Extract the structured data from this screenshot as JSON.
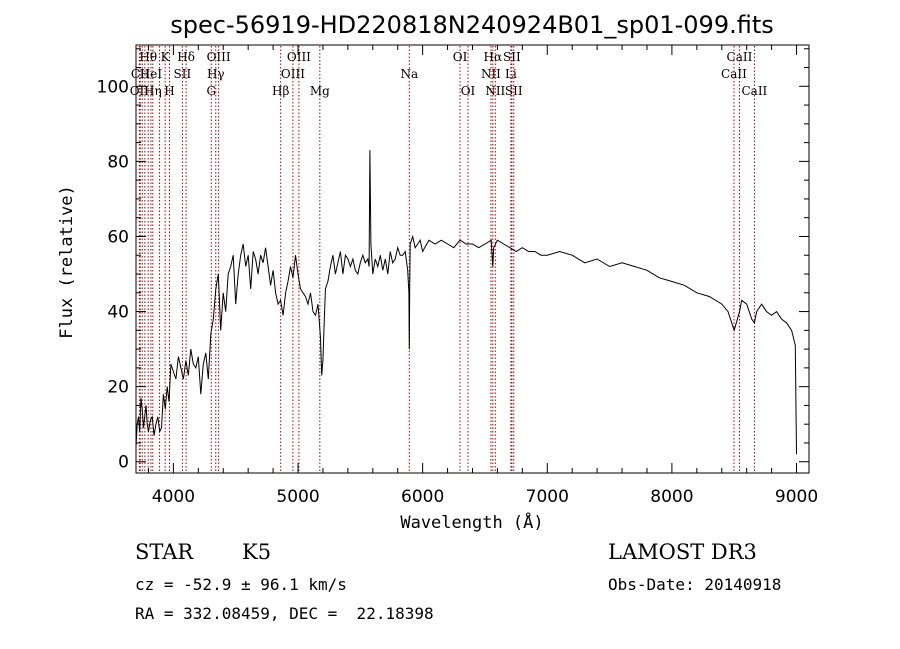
{
  "chart_data": {
    "type": "line",
    "title": "spec-56919-HD220818N240924B01_sp01-099.fits",
    "xlabel": "Wavelength (Å)",
    "ylabel": "Flux (relative)",
    "xlim": [
      3700,
      9100
    ],
    "ylim": [
      -3,
      111
    ],
    "xticks": [
      4000,
      5000,
      6000,
      7000,
      8000,
      9000
    ],
    "yticks": [
      0,
      20,
      40,
      60,
      80,
      100
    ],
    "grid": false,
    "line_color": "#000000",
    "marker_color": "#aa0000",
    "series": [
      {
        "x": [
          3700,
          3710,
          3720,
          3730,
          3740,
          3750,
          3760,
          3770,
          3780,
          3790,
          3800,
          3815,
          3830,
          3845,
          3860,
          3875,
          3890,
          3905,
          3920,
          3935,
          3950,
          3965,
          3980,
          4000,
          4020,
          4040,
          4060,
          4080,
          4100,
          4120,
          4140,
          4160,
          4180,
          4200,
          4220,
          4240,
          4260,
          4280,
          4300,
          4320,
          4340,
          4360,
          4380,
          4400,
          4420,
          4440,
          4460,
          4480,
          4500,
          4520,
          4540,
          4560,
          4580,
          4600,
          4620,
          4640,
          4660,
          4680,
          4700,
          4720,
          4740,
          4760,
          4780,
          4800,
          4820,
          4840,
          4860,
          4880,
          4900,
          4920,
          4940,
          4960,
          4980,
          5000,
          5020,
          5040,
          5060,
          5080,
          5100,
          5120,
          5140,
          5160,
          5180,
          5190,
          5200,
          5220,
          5240,
          5260,
          5280,
          5300,
          5320,
          5340,
          5360,
          5380,
          5400,
          5420,
          5440,
          5460,
          5480,
          5500,
          5520,
          5540,
          5560,
          5570,
          5577,
          5585,
          5600,
          5620,
          5640,
          5660,
          5680,
          5700,
          5720,
          5740,
          5760,
          5780,
          5800,
          5820,
          5840,
          5860,
          5880,
          5890,
          5893,
          5896,
          5900,
          5920,
          5940,
          5960,
          5980,
          6000,
          6050,
          6100,
          6150,
          6200,
          6250,
          6300,
          6350,
          6400,
          6450,
          6500,
          6550,
          6563,
          6570,
          6600,
          6650,
          6700,
          6750,
          6800,
          6850,
          6900,
          6950,
          7000,
          7100,
          7200,
          7300,
          7400,
          7500,
          7600,
          7700,
          7800,
          7900,
          8000,
          8100,
          8200,
          8300,
          8400,
          8450,
          8500,
          8542,
          8560,
          8600,
          8640,
          8662,
          8680,
          8720,
          8760,
          8800,
          8840,
          8880,
          8920,
          8960,
          8990,
          9000
        ],
        "y": [
          4,
          10,
          12,
          8,
          17,
          14,
          9,
          12,
          15,
          10,
          8,
          11,
          12,
          7,
          10,
          12,
          8,
          9,
          18,
          14,
          20,
          16,
          26,
          24,
          22,
          28,
          25,
          22,
          27,
          23,
          30,
          26,
          25,
          28,
          18,
          26,
          29,
          22,
          34,
          38,
          46,
          50,
          35,
          45,
          40,
          50,
          52,
          55,
          42,
          50,
          55,
          58,
          52,
          55,
          46,
          56,
          54,
          50,
          55,
          53,
          57,
          52,
          47,
          51,
          45,
          42,
          43,
          39,
          45,
          48,
          52,
          49,
          55,
          50,
          46,
          45,
          44,
          42,
          45,
          40,
          39,
          42,
          33,
          23,
          27,
          46,
          48,
          52,
          55,
          50,
          53,
          56,
          50,
          55,
          54,
          52,
          54,
          51,
          50,
          53,
          55,
          53,
          54,
          52,
          83,
          58,
          50,
          54,
          52,
          55,
          51,
          54,
          50,
          56,
          53,
          54,
          57,
          55,
          55,
          56,
          51,
          45,
          30,
          46,
          58,
          60,
          57,
          58,
          59,
          56,
          59,
          58,
          59,
          58,
          57,
          59,
          58,
          58,
          57,
          58,
          59,
          52,
          57,
          59,
          58,
          57,
          56,
          57,
          56,
          56,
          55,
          55,
          56,
          55,
          53,
          54,
          52,
          53,
          52,
          51,
          49,
          48,
          47,
          45,
          44,
          42,
          40,
          35,
          40,
          43,
          42,
          38,
          37,
          40,
          42,
          40,
          39,
          40,
          38,
          37,
          35,
          31,
          2
        ]
      }
    ],
    "lines": [
      {
        "wavelength": 3727,
        "label": "OII",
        "row": 2
      },
      {
        "wavelength": 3734,
        "label": "CII",
        "row": 1
      },
      {
        "wavelength": 3750,
        "label": "",
        "row": 0
      },
      {
        "wavelength": 3771,
        "label": "",
        "row": 0
      },
      {
        "wavelength": 3798,
        "label": "Hθ",
        "row": 0
      },
      {
        "wavelength": 3820,
        "label": "HeI",
        "row": 1
      },
      {
        "wavelength": 3835,
        "label": "Hη",
        "row": 2
      },
      {
        "wavelength": 3889,
        "label": "",
        "row": 0
      },
      {
        "wavelength": 3934,
        "label": "K",
        "row": 0
      },
      {
        "wavelength": 3969,
        "label": "H",
        "row": 2
      },
      {
        "wavelength": 4072,
        "label": "SII",
        "row": 1
      },
      {
        "wavelength": 4102,
        "label": "Hδ",
        "row": 0
      },
      {
        "wavelength": 4304,
        "label": "G",
        "row": 2
      },
      {
        "wavelength": 4340,
        "label": "Hγ",
        "row": 1
      },
      {
        "wavelength": 4363,
        "label": "OIII",
        "row": 0
      },
      {
        "wavelength": 4861,
        "label": "Hβ",
        "row": 2
      },
      {
        "wavelength": 4959,
        "label": "OIII",
        "row": 1
      },
      {
        "wavelength": 5007,
        "label": "OIII",
        "row": 0
      },
      {
        "wavelength": 5175,
        "label": "Mg",
        "row": 2
      },
      {
        "wavelength": 5893,
        "label": "Na",
        "row": 1
      },
      {
        "wavelength": 6300,
        "label": "OI",
        "row": 0
      },
      {
        "wavelength": 6364,
        "label": "OI",
        "row": 2
      },
      {
        "wavelength": 6548,
        "label": "NII",
        "row": 1
      },
      {
        "wavelength": 6563,
        "label": "Hα",
        "row": 0
      },
      {
        "wavelength": 6583,
        "label": "NII",
        "row": 2
      },
      {
        "wavelength": 6708,
        "label": "Li",
        "row": 1
      },
      {
        "wavelength": 6716,
        "label": "SII",
        "row": 0
      },
      {
        "wavelength": 6731,
        "label": "SII",
        "row": 2
      },
      {
        "wavelength": 8498,
        "label": "CaII",
        "row": 1
      },
      {
        "wavelength": 8542,
        "label": "CaII",
        "row": 0
      },
      {
        "wavelength": 8662,
        "label": "CaII",
        "row": 2
      }
    ]
  },
  "info": {
    "object_class": "STAR",
    "subclass": "K5",
    "survey": "LAMOST DR3",
    "redshift": "cz = -52.9 ± 96.1 km/s",
    "obs_date": "Obs-Date: 20140918",
    "coords": "RA = 332.08459, DEC =  22.18398"
  }
}
